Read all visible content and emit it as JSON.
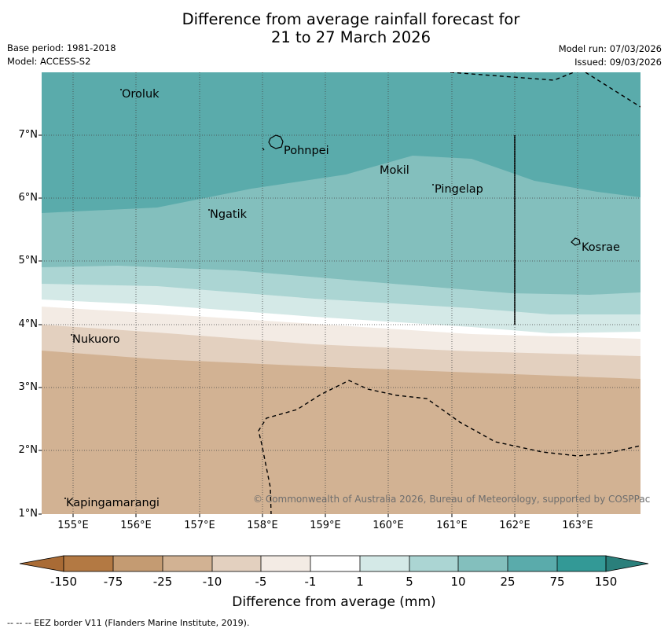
{
  "title_line1": "Difference from average rainfall forecast for",
  "title_line2": "21 to 27 March 2026",
  "base_period": "Base period: 1981-2018",
  "model": "Model: ACCESS-S2",
  "model_run": "Model run: 07/03/2026",
  "issued": "Issued: 09/03/2026",
  "copyright": "© Commonwealth of Australia 2026, Bureau of Meteorology, supported by COSPPac",
  "colorbar_title": "Difference from average (mm)",
  "footer_note": "--  --  -- EEZ border V11 (Flanders Marine Institute, 2019).",
  "map": {
    "lon_range": [
      154.5,
      164.0
    ],
    "lat_range": [
      1.0,
      8.0
    ],
    "lat_ticks": [
      "1°N",
      "2°N",
      "3°N",
      "4°N",
      "5°N",
      "6°N",
      "7°N"
    ],
    "lon_ticks": [
      "155°E",
      "156°E",
      "157°E",
      "158°E",
      "159°E",
      "160°E",
      "161°E",
      "162°E",
      "163°E"
    ],
    "places": [
      {
        "name": "Oroluk",
        "lon": 155.8,
        "lat": 7.65
      },
      {
        "name": "Pohnpei",
        "lon": 158.3,
        "lat": 6.75
      },
      {
        "name": "Mokil",
        "lon": 159.8,
        "lat": 6.45
      },
      {
        "name": "Pingelap",
        "lon": 160.75,
        "lat": 6.15
      },
      {
        "name": "Ngatik",
        "lon": 157.15,
        "lat": 5.75
      },
      {
        "name": "Kosrae",
        "lon": 163.0,
        "lat": 5.3
      },
      {
        "name": "Nukuoro",
        "lon": 154.95,
        "lat": 3.8
      },
      {
        "name": "Kapingamarangi",
        "lon": 154.85,
        "lat": 1.15
      }
    ]
  },
  "colorbar": {
    "ticks": [
      "-150",
      "-75",
      "-25",
      "-10",
      "-5",
      "-1",
      "1",
      "5",
      "10",
      "25",
      "75",
      "150"
    ],
    "colors": {
      "below_min": "#a96b35",
      "neg150_neg75": "#b37943",
      "neg75_neg25": "#c49b72",
      "neg25_neg10": "#d2b293",
      "neg10_neg5": "#e3d0bf",
      "neg5_neg1": "#f3ebe4",
      "neg1_1": "#ffffff",
      "pos1_5": "#d4e9e7",
      "pos5_10": "#abd5d3",
      "pos10_25": "#83bfbd",
      "pos25_75": "#5aabab",
      "pos75_150": "#339996",
      "above_max": "#2a7f7b"
    }
  }
}
